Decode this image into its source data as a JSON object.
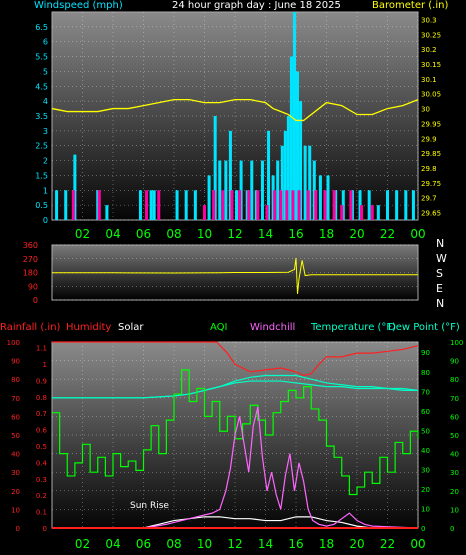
{
  "colors": {
    "wind": "#00e5ff",
    "gust": "#ff00a0",
    "baro": "#ffff00",
    "dir": "#ffff00",
    "rain": "#ff2020",
    "humidity": "#ff2020",
    "solar": "#ffffff",
    "aqi": "#00ff00",
    "windchill": "#ff66ff",
    "temperature": "#00ffc8",
    "dewpoint": "#00ffc8",
    "grid": "#ffffff",
    "axis_left1": "#00e5ff",
    "axis_right1": "#ffff00",
    "axis_left3a": "#ff2020",
    "axis_left3b": "#ff2020",
    "axis_right3a": "#00ff00",
    "axis_right3b": "#00ff00",
    "xaxis": "#00ff00"
  },
  "chart_data": [
    {
      "type": "bar",
      "title": "24 hour graph day : June 18 2025",
      "ylabel_left": "Windspeed (mph)",
      "ylabel_right": "Barometer (.in)",
      "x_ticks": [
        "02",
        "04",
        "06",
        "08",
        "10",
        "12",
        "14",
        "16",
        "18",
        "20",
        "22",
        "00"
      ],
      "yticks_left": [
        "0",
        "0.5",
        "1",
        "1.5",
        "2",
        "2.5",
        "3",
        "3.5",
        "4",
        "4.5",
        "5",
        "5.5",
        "6",
        "6.5"
      ],
      "yticks_right": [
        "29.65",
        "29.7",
        "29.75",
        "29.8",
        "29.85",
        "29.9",
        "29.95",
        "30",
        "30.05",
        "30.1",
        "30.15",
        "30.2",
        "30.25",
        "30.3"
      ],
      "ylim_left": [
        0,
        7
      ],
      "ylim_right": [
        29.625,
        30.325
      ],
      "xlim": [
        0,
        24
      ],
      "series": [
        {
          "name": "Windspeed (mph)",
          "kind": "bar",
          "x": [
            0.3,
            0.9,
            1.5,
            3.0,
            3.6,
            5.8,
            6.5,
            6.7,
            8.2,
            8.8,
            9.4,
            10.3,
            10.7,
            11.0,
            11.4,
            11.7,
            12.1,
            12.4,
            12.8,
            13.1,
            13.4,
            13.8,
            14.2,
            14.5,
            14.8,
            15.1,
            15.3,
            15.5,
            15.7,
            15.9,
            16.1,
            16.3,
            16.6,
            16.9,
            17.2,
            17.6,
            18.1,
            18.6,
            19.1,
            19.7,
            20.2,
            20.8,
            21.4,
            22.0,
            22.6,
            23.2,
            23.7
          ],
          "values": [
            1,
            1,
            2.2,
            1,
            0.5,
            1,
            1,
            1,
            1,
            1,
            1,
            1.5,
            3.5,
            2,
            2,
            3,
            1,
            2,
            1,
            2,
            1,
            2,
            3,
            1.5,
            2,
            2.5,
            3,
            3.5,
            5.5,
            7,
            5,
            4,
            2.5,
            2.5,
            2,
            1.5,
            1.5,
            1,
            1,
            1,
            1,
            1,
            0.5,
            1,
            1,
            1,
            1
          ]
        },
        {
          "name": "Gust",
          "kind": "bar",
          "x": [
            1.4,
            3.1,
            6.2,
            7.0,
            10.0,
            10.6,
            11.2,
            11.8,
            12.3,
            12.9,
            13.5,
            14.1,
            14.6,
            15.0,
            15.4,
            15.8,
            16.2,
            16.8,
            17.3,
            17.9,
            18.5,
            19.0,
            19.6,
            20.3,
            21.0
          ],
          "values": [
            1,
            1,
            1,
            1,
            0.5,
            1,
            1,
            1,
            1,
            1,
            1,
            0.5,
            1,
            1,
            1,
            1,
            1,
            1,
            1,
            1,
            1,
            0.5,
            1,
            0.5,
            0.5
          ]
        },
        {
          "name": "Barometer (.in)",
          "kind": "line",
          "axis": "right",
          "x": [
            0,
            1,
            2,
            3,
            4,
            5,
            6,
            7,
            8,
            9,
            10,
            11,
            12,
            13,
            14,
            14.5,
            15,
            15.5,
            16,
            16.5,
            17,
            17.5,
            18,
            19,
            20,
            21,
            22,
            23,
            24
          ],
          "values": [
            30.0,
            29.99,
            29.99,
            29.99,
            30.0,
            30.0,
            30.01,
            30.02,
            30.03,
            30.03,
            30.02,
            30.02,
            30.03,
            30.03,
            30.02,
            30.0,
            29.99,
            29.98,
            29.96,
            29.96,
            29.98,
            30.0,
            30.02,
            30.01,
            29.98,
            29.98,
            30.0,
            30.01,
            30.03
          ]
        }
      ]
    },
    {
      "type": "line",
      "title": "",
      "ylabel": "",
      "yticks": [
        "0",
        "90",
        "180",
        "270",
        "360"
      ],
      "compass": [
        "N",
        "W",
        "S",
        "E",
        "N"
      ],
      "x_ticks": [],
      "ylim": [
        0,
        360
      ],
      "xlim": [
        0,
        24
      ],
      "series": [
        {
          "name": "Wind Direction",
          "x": [
            0,
            4,
            8,
            11,
            12,
            14,
            15.5,
            15.9,
            16.0,
            16.1,
            16.2,
            16.4,
            16.6,
            17,
            20,
            24
          ],
          "values": [
            178,
            178,
            177,
            178,
            180,
            180,
            182,
            200,
            275,
            40,
            140,
            260,
            160,
            165,
            165,
            165
          ]
        }
      ]
    },
    {
      "type": "line",
      "title": "",
      "legend": [
        "Rainfall (.in)",
        "Humidity",
        "Solar",
        "AQI",
        "Windchill",
        "Temperature (°F)",
        "Dew Point (°F)"
      ],
      "yticks_left_a": [
        "0",
        "10",
        "20",
        "30",
        "40",
        "50",
        "60",
        "70",
        "80",
        "90",
        "100"
      ],
      "yticks_left_b": [
        "0",
        "0.1",
        "0.2",
        "0.3",
        "0.4",
        "0.5",
        "0.6",
        "0.7",
        "0.8",
        "0.9",
        "1",
        "1.1"
      ],
      "yticks_right_a": [
        "0",
        "10",
        "20",
        "30",
        "40",
        "50",
        "60",
        "70",
        "80",
        "90"
      ],
      "yticks_right_b": [
        "0",
        "10",
        "20",
        "30",
        "40",
        "50",
        "60",
        "70",
        "80",
        "90",
        "100"
      ],
      "ylim": [
        0,
        100
      ],
      "xlim": [
        0,
        24
      ],
      "x_ticks": [
        "02",
        "04",
        "06",
        "08",
        "10",
        "12",
        "14",
        "16",
        "18",
        "20",
        "22",
        "00"
      ],
      "annotation": "Sun Rise",
      "series": [
        {
          "name": "Humidity",
          "x": [
            0,
            1,
            2,
            3,
            4,
            5,
            6,
            7,
            8,
            9,
            10,
            10.8,
            11.5,
            12,
            12.5,
            13,
            14,
            15,
            16,
            16.5,
            17,
            17.5,
            18,
            19,
            20,
            21,
            22,
            23,
            24
          ],
          "values": [
            100,
            100,
            100,
            100,
            100,
            100,
            100,
            100,
            100,
            100,
            100,
            100,
            94,
            88,
            86,
            84,
            85,
            86,
            84,
            82,
            83,
            88,
            92,
            92,
            94,
            94,
            95,
            96,
            98
          ]
        },
        {
          "name": "Temperature (°F)",
          "x": [
            0,
            2,
            4,
            6,
            8,
            9,
            10,
            11,
            12,
            13,
            14,
            15,
            16,
            17,
            18,
            19,
            20,
            21,
            22,
            23,
            24
          ],
          "values": [
            70,
            70,
            70,
            70,
            71,
            72,
            74,
            76,
            79,
            81,
            82,
            82,
            82,
            80,
            78,
            77,
            76,
            76,
            75,
            75,
            74
          ]
        },
        {
          "name": "Dew Point (°F)",
          "x": [
            0,
            2,
            4,
            6,
            8,
            9,
            10,
            11,
            12,
            13,
            14,
            15,
            16,
            17,
            18,
            19,
            20,
            21,
            22,
            23,
            24
          ],
          "values": [
            70,
            70,
            70,
            70,
            71,
            72,
            74,
            76,
            78,
            79,
            79,
            79,
            78,
            77,
            76,
            76,
            75,
            75,
            75,
            74,
            74
          ]
        },
        {
          "name": "AQI",
          "x": [
            0,
            0.5,
            1,
            1.5,
            2,
            2.5,
            3,
            3.5,
            4,
            4.5,
            5,
            5.5,
            6,
            6.5,
            7,
            7.5,
            8,
            8.5,
            9,
            9.5,
            10,
            10.5,
            11,
            11.5,
            12,
            12.5,
            13,
            13.5,
            14,
            14.5,
            15,
            15.5,
            16,
            16.5,
            17,
            17.5,
            18,
            18.5,
            19,
            19.5,
            20,
            20.5,
            21,
            21.5,
            22,
            22.5,
            23,
            23.5,
            24
          ],
          "values": [
            62,
            40,
            28,
            35,
            45,
            30,
            38,
            28,
            40,
            33,
            36,
            31,
            42,
            55,
            40,
            58,
            72,
            85,
            68,
            75,
            60,
            68,
            52,
            60,
            48,
            56,
            66,
            58,
            50,
            62,
            68,
            74,
            70,
            76,
            64,
            58,
            44,
            38,
            28,
            18,
            22,
            30,
            24,
            38,
            30,
            46,
            40,
            52,
            48
          ]
        },
        {
          "name": "Solar",
          "x": [
            0,
            5,
            6,
            6.5,
            7,
            8,
            9,
            10,
            11,
            12,
            13,
            14,
            15,
            16,
            17,
            18,
            19,
            20,
            21,
            24
          ],
          "values": [
            0,
            0,
            0,
            1,
            2,
            4,
            5,
            6,
            6,
            5,
            5,
            4,
            4,
            6,
            6,
            4,
            3,
            1,
            0,
            0
          ]
        },
        {
          "name": "Windchill",
          "x": [
            0,
            6,
            6.8,
            7.5,
            8.5,
            9.5,
            10.5,
            11,
            11.4,
            11.7,
            12,
            12.3,
            12.6,
            12.9,
            13.2,
            13.5,
            13.8,
            14.1,
            14.4,
            14.7,
            15,
            15.3,
            15.6,
            15.9,
            16.2,
            16.5,
            16.8,
            17.1,
            17.5,
            18,
            18.5,
            19,
            19.5,
            20,
            20.5,
            21,
            24
          ],
          "values": [
            0,
            0,
            1,
            2,
            4,
            6,
            8,
            10,
            20,
            32,
            50,
            60,
            45,
            30,
            55,
            65,
            38,
            20,
            30,
            18,
            10,
            28,
            40,
            20,
            35,
            25,
            10,
            4,
            2,
            1,
            2,
            5,
            8,
            4,
            2,
            1,
            0
          ]
        },
        {
          "name": "Rainfall (.in)",
          "x": [
            0,
            24
          ],
          "values": [
            0.0,
            0.0
          ]
        }
      ]
    }
  ]
}
